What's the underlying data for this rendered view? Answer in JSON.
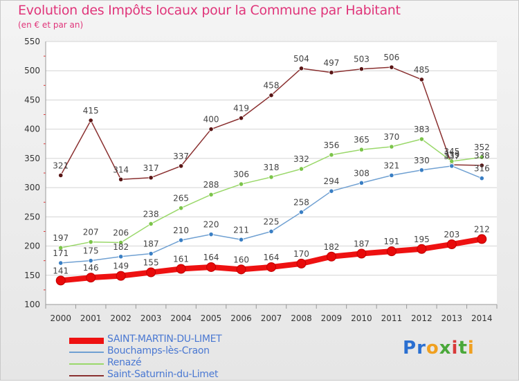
{
  "header": {
    "title": "Evolution des Impôts locaux pour la Commune par Habitant",
    "subtitle": "(en € et par an)"
  },
  "logo": {
    "letters": [
      "P",
      "r",
      "o",
      "x",
      "i",
      "t",
      "i"
    ],
    "colors": [
      "#2a6fd1",
      "#2a6fd1",
      "#f0a020",
      "#4aa83a",
      "#d83a3a",
      "#4aa83a",
      "#f0a020"
    ]
  },
  "chart_data": {
    "type": "line",
    "x": [
      "2000",
      "2001",
      "2002",
      "2003",
      "2004",
      "2005",
      "2006",
      "2007",
      "2008",
      "2009",
      "2010",
      "2011",
      "2012",
      "2013",
      "2014"
    ],
    "ylim": [
      100,
      550
    ],
    "yticks": [
      "100",
      "150",
      "200",
      "250",
      "300",
      "350",
      "400",
      "450",
      "500",
      "550"
    ],
    "grid": "horizontal",
    "legend_position": "bottom-left",
    "series": [
      {
        "name": "SAINT-MARTIN-DU-LIMET",
        "color": "#ee1111",
        "marker_color": "#e80a0a",
        "values": [
          141,
          146,
          149,
          155,
          161,
          164,
          160,
          164,
          170,
          182,
          187,
          191,
          195,
          203,
          212
        ],
        "labels": [
          "141",
          "146",
          "149",
          "155",
          "161",
          "164",
          "160",
          "164",
          "170",
          "182",
          "187",
          "191",
          "195",
          "203",
          "212"
        ]
      },
      {
        "name": "Bouchamps-lès-Craon",
        "color": "#6fa0d2",
        "marker_color": "#3a7fc4",
        "values": [
          171,
          175,
          182,
          187,
          210,
          220,
          211,
          225,
          258,
          294,
          308,
          321,
          330,
          337,
          316
        ],
        "labels": [
          "171",
          "175",
          "182",
          "187",
          "210",
          "220",
          "211",
          "225",
          "258",
          "294",
          "308",
          "321",
          "330",
          "337",
          "316"
        ]
      },
      {
        "name": "Renazé",
        "color": "#9ad86a",
        "marker_color": "#7cc44a",
        "values": [
          197,
          207,
          206,
          238,
          265,
          288,
          306,
          318,
          332,
          356,
          365,
          370,
          383,
          345,
          352
        ],
        "labels": [
          "197",
          "207",
          "206",
          "238",
          "265",
          "288",
          "306",
          "318",
          "332",
          "356",
          "365",
          "370",
          "383",
          "345",
          "352"
        ]
      },
      {
        "name": "Saint-Saturnin-du-Limet",
        "color": "#8a3030",
        "marker_color": "#5a1616",
        "values": [
          321,
          415,
          314,
          317,
          337,
          400,
          419,
          458,
          504,
          497,
          503,
          506,
          485,
          339,
          338
        ],
        "labels": [
          "321",
          "415",
          "314",
          "317",
          "337",
          "400",
          "419",
          "458",
          "504",
          "497",
          "503",
          "506",
          "485",
          "339",
          "338"
        ]
      }
    ]
  }
}
